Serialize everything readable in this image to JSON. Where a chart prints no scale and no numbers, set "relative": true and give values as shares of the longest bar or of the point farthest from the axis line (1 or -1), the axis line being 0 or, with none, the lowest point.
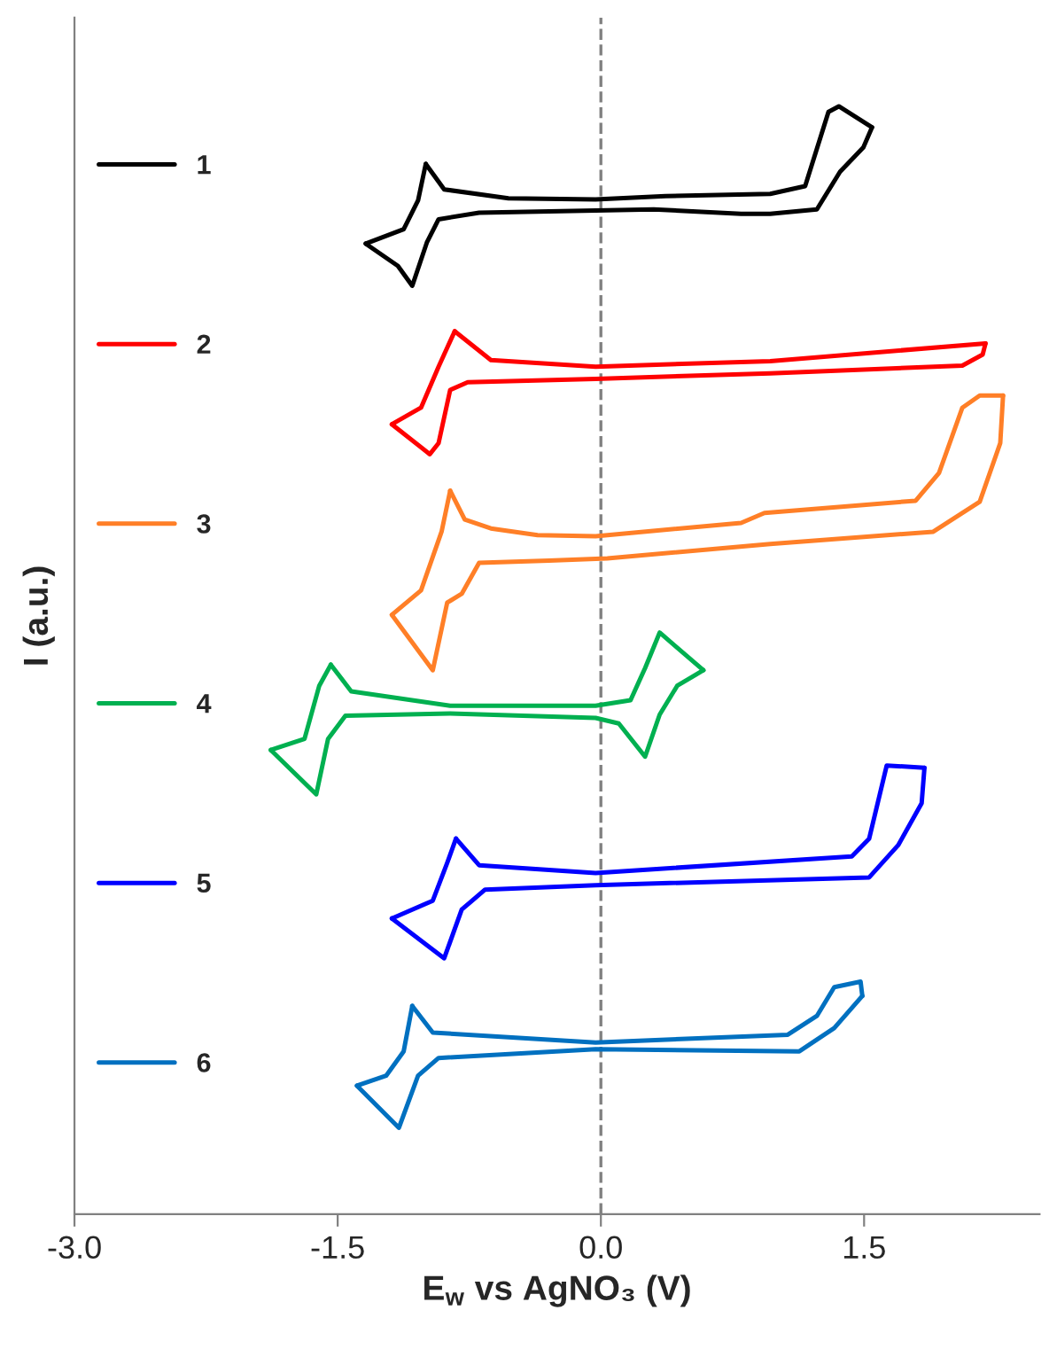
{
  "chart_data": {
    "type": "line",
    "relative": true,
    "xlabel": "E$_{w}$ vs AgNO₃ (V)",
    "ylabel": "I (a.u.)",
    "xlim": [
      -3.0,
      2.5
    ],
    "xticks": [
      {
        "value": -3.0,
        "label": "-3.0"
      },
      {
        "value": -1.5,
        "label": "-1.5"
      },
      {
        "value": 0.0,
        "label": "0.0"
      },
      {
        "value": 1.5,
        "label": "1.5"
      }
    ],
    "legend": "left",
    "grid": false,
    "line_style": "solid",
    "ref_lines": [
      {
        "axis": "x",
        "value": 0,
        "color": "#808080",
        "line_style": "dashed"
      }
    ],
    "series": [
      {
        "name": "1",
        "color": "#000000",
        "x": [
          -0.998,
          -0.893,
          -0.527,
          -0.03,
          0.368,
          0.965,
          1.164,
          1.297,
          1.356,
          1.545
        ],
        "values": [
          0.948,
          0.925,
          0.917,
          0.916,
          0.919,
          0.921,
          0.928,
          0.995,
          1.0,
          0.981
        ]
      },
      {
        "color": "#000000",
        "x": [
          1.545,
          1.496,
          1.363,
          1.231,
          0.965,
          0.799,
          0.301,
          -0.03,
          -0.694,
          -0.925,
          -0.992,
          -1.075,
          -1.157,
          -1.34
        ],
        "values": [
          0.981,
          0.963,
          0.941,
          0.907,
          0.903,
          0.903,
          0.907,
          0.906,
          0.904,
          0.898,
          0.877,
          0.838,
          0.856,
          0.876
        ]
      },
      {
        "color": "#000000",
        "x": [
          -1.34,
          -1.124,
          -1.042,
          -0.998
        ],
        "values": [
          0.876,
          0.889,
          0.915,
          0.948
        ]
      },
      {
        "name": "2",
        "color": "#ff0000",
        "x": [
          -0.833,
          -0.627,
          -0.03,
          0.965,
          2.192
        ],
        "values": [
          0.797,
          0.771,
          0.765,
          0.77,
          0.786
        ]
      },
      {
        "color": "#ff0000",
        "x": [
          2.192,
          2.176,
          2.06,
          0.965,
          -0.03,
          -0.759,
          -0.859,
          -0.925,
          -0.975,
          -1.191
        ],
        "values": [
          0.786,
          0.776,
          0.766,
          0.759,
          0.754,
          0.751,
          0.744,
          0.696,
          0.686,
          0.713
        ]
      },
      {
        "color": "#ff0000",
        "x": [
          -1.191,
          -1.025,
          -0.925,
          -0.833
        ],
        "values": [
          0.713,
          0.728,
          0.765,
          0.797
        ]
      },
      {
        "name": "3",
        "color": "#ff7f27",
        "x": [
          -0.859,
          -0.776,
          -0.627,
          -0.361,
          -0.03,
          0.799,
          0.932,
          1.794,
          1.927,
          2.06,
          2.159,
          2.292
        ],
        "values": [
          0.653,
          0.627,
          0.619,
          0.613,
          0.612,
          0.624,
          0.633,
          0.644,
          0.669,
          0.728,
          0.739,
          0.739
        ]
      },
      {
        "color": "#ff7f27",
        "x": [
          2.292,
          2.276,
          2.159,
          1.894,
          0.965,
          0.037,
          -0.296,
          -0.694,
          -0.793,
          -0.876,
          -0.958,
          -1.191
        ],
        "values": [
          0.739,
          0.696,
          0.643,
          0.616,
          0.605,
          0.592,
          0.59,
          0.588,
          0.56,
          0.552,
          0.491,
          0.541
        ]
      },
      {
        "color": "#ff7f27",
        "x": [
          -1.191,
          -1.025,
          -0.908,
          -0.859
        ],
        "values": [
          0.541,
          0.563,
          0.616,
          0.653
        ]
      },
      {
        "name": "4",
        "color": "#00b050",
        "x": [
          -1.539,
          -1.423,
          -0.859,
          -0.03,
          0.169,
          0.252,
          0.335,
          0.584
        ],
        "values": [
          0.496,
          0.472,
          0.459,
          0.459,
          0.464,
          0.493,
          0.525,
          0.491
        ]
      },
      {
        "color": "#00b050",
        "x": [
          0.584,
          0.435,
          0.335,
          0.252,
          0.102,
          -0.03,
          -0.859,
          -1.456,
          -1.555,
          -1.622,
          -1.881
        ],
        "values": [
          0.491,
          0.477,
          0.451,
          0.413,
          0.443,
          0.448,
          0.452,
          0.45,
          0.429,
          0.379,
          0.419
        ]
      },
      {
        "color": "#00b050",
        "x": [
          -1.881,
          -1.689,
          -1.605,
          -1.539
        ],
        "values": [
          0.419,
          0.429,
          0.477,
          0.496
        ]
      },
      {
        "name": "5",
        "color": "#0000ff",
        "x": [
          -0.826,
          -0.694,
          -0.03,
          1.43,
          1.529,
          1.629,
          1.844
        ],
        "values": [
          0.339,
          0.315,
          0.308,
          0.323,
          0.339,
          0.405,
          0.403
        ]
      },
      {
        "color": "#0000ff",
        "x": [
          1.844,
          1.828,
          1.694,
          1.529,
          -0.03,
          -0.66,
          -0.793,
          -0.893,
          -1.191
        ],
        "values": [
          0.403,
          0.371,
          0.333,
          0.304,
          0.297,
          0.293,
          0.275,
          0.231,
          0.267
        ]
      },
      {
        "color": "#0000ff",
        "x": [
          -1.191,
          -0.958,
          -0.876,
          -0.826
        ],
        "values": [
          0.267,
          0.283,
          0.317,
          0.339
        ]
      },
      {
        "name": "6",
        "color": "#0070c0",
        "x": [
          -1.075,
          -0.958,
          -0.03,
          1.065,
          1.231,
          1.33,
          1.48,
          1.49
        ],
        "values": [
          0.188,
          0.164,
          0.155,
          0.162,
          0.179,
          0.205,
          0.21,
          0.197
        ]
      },
      {
        "color": "#0070c0",
        "x": [
          1.49,
          1.33,
          1.131,
          -0.03,
          -0.925,
          -1.042,
          -1.151,
          -1.39
        ],
        "values": [
          0.197,
          0.168,
          0.147,
          0.149,
          0.141,
          0.125,
          0.078,
          0.116
        ]
      },
      {
        "color": "#0070c0",
        "x": [
          -1.39,
          -1.224,
          -1.124,
          -1.075
        ],
        "values": [
          0.116,
          0.125,
          0.147,
          0.188
        ]
      }
    ]
  }
}
